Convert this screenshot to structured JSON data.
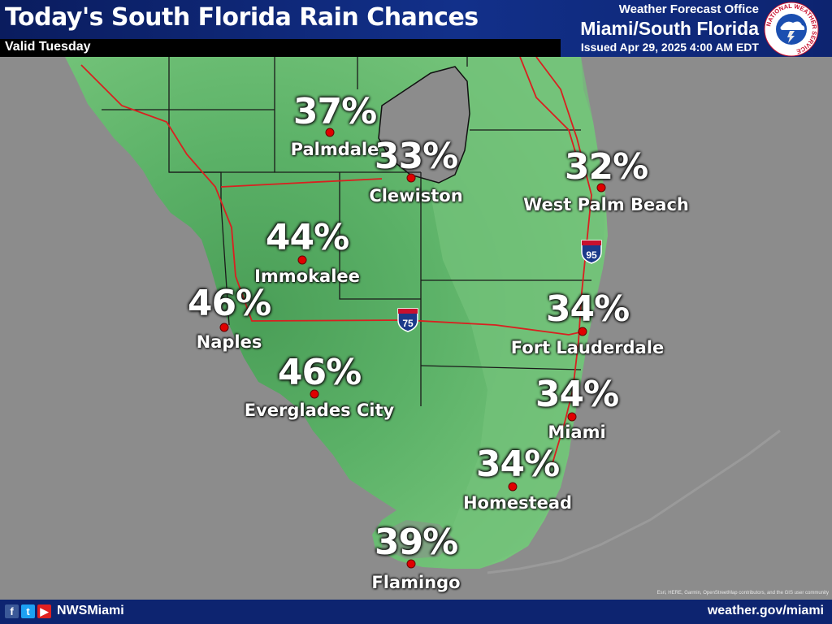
{
  "header": {
    "title": "Today's South Florida Rain Chances",
    "valid": "Valid Tuesday",
    "office_label": "Weather Forecast Office",
    "office_name": "Miami/South Florida",
    "issued": "Issued Apr 29, 2025 4:00 AM EDT",
    "logo_text": "NATIONAL WEATHER SERVICE"
  },
  "colors": {
    "header_bg": "#12308a",
    "land_light": "#79c77d",
    "land_mid": "#5bb167",
    "land_dark": "#4a9e57",
    "water": "#8c8c8c",
    "county_line": "#1a1a1a",
    "road": "#d92020",
    "city_dot": "#e00000"
  },
  "highways": [
    {
      "route": "95",
      "icon": "interstate-shield-icon"
    },
    {
      "route": "75",
      "icon": "interstate-shield-icon"
    }
  ],
  "chart_data": {
    "type": "map",
    "title": "Today's South Florida Rain Chances",
    "variable": "Probability of precipitation (%)",
    "points": [
      {
        "city": "Palmdale",
        "value": "37%"
      },
      {
        "city": "Clewiston",
        "value": "33%"
      },
      {
        "city": "West Palm Beach",
        "value": "32%"
      },
      {
        "city": "Immokalee",
        "value": "44%"
      },
      {
        "city": "Naples",
        "value": "46%"
      },
      {
        "city": "Fort Lauderdale",
        "value": "34%"
      },
      {
        "city": "Everglades City",
        "value": "46%"
      },
      {
        "city": "Miami",
        "value": "34%"
      },
      {
        "city": "Homestead",
        "value": "34%"
      },
      {
        "city": "Flamingo",
        "value": "39%"
      }
    ]
  },
  "footer": {
    "handle": "NWSMiami",
    "site": "weather.gov/miami",
    "social": [
      "f",
      "t",
      "▶"
    ],
    "attribution": "Esri, HERE, Garmin, OpenStreetMap contributors, and the GIS user community"
  }
}
